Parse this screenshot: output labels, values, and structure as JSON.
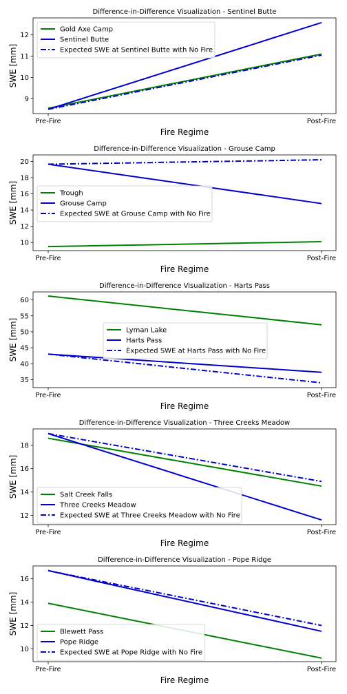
{
  "chart_data": [
    {
      "type": "line",
      "title": "Difference-in-Difference Visualization - Sentinel Butte",
      "xlabel": "Fire Regime",
      "ylabel": "SWE [mm]",
      "categories": [
        "Pre-Fire",
        "Post-Fire"
      ],
      "ylim": [
        8.3,
        12.8
      ],
      "yticks": [
        9,
        10,
        11,
        12
      ],
      "legend_loc": "upper-left",
      "series": [
        {
          "name": "Gold Axe Camp",
          "values": [
            8.55,
            11.1
          ],
          "color": "#008000",
          "style": "solid"
        },
        {
          "name": "Sentinel Butte",
          "values": [
            8.5,
            12.58
          ],
          "color": "#0000cd",
          "style": "solid"
        },
        {
          "name": "Expected SWE at Sentinel Butte with No Fire",
          "values": [
            8.5,
            11.05
          ],
          "color": "#0000cd",
          "style": "dashdot"
        }
      ]
    },
    {
      "type": "line",
      "title": "Difference-in-Difference Visualization - Grouse Camp",
      "xlabel": "Fire Regime",
      "ylabel": "SWE [mm]",
      "categories": [
        "Pre-Fire",
        "Post-Fire"
      ],
      "ylim": [
        9.0,
        20.8
      ],
      "yticks": [
        10,
        12,
        14,
        16,
        18,
        20
      ],
      "legend_loc": "center-left",
      "series": [
        {
          "name": "Trough",
          "values": [
            9.5,
            10.1
          ],
          "color": "#008000",
          "style": "solid"
        },
        {
          "name": "Grouse Camp",
          "values": [
            19.65,
            14.8
          ],
          "color": "#0000cd",
          "style": "solid"
        },
        {
          "name": "Expected SWE at Grouse Camp with No Fire",
          "values": [
            19.65,
            20.2
          ],
          "color": "#0000cd",
          "style": "dashdot"
        }
      ]
    },
    {
      "type": "line",
      "title": "Difference-in-Difference Visualization - Harts Pass",
      "xlabel": "Fire Regime",
      "ylabel": "SWE [mm]",
      "categories": [
        "Pre-Fire",
        "Post-Fire"
      ],
      "ylim": [
        32.5,
        62.5
      ],
      "yticks": [
        35,
        40,
        45,
        50,
        55,
        60
      ],
      "legend_loc": "center",
      "series": [
        {
          "name": "Lyman Lake",
          "values": [
            61.2,
            52.2
          ],
          "color": "#008000",
          "style": "solid"
        },
        {
          "name": "Harts Pass",
          "values": [
            43.0,
            37.3
          ],
          "color": "#0000cd",
          "style": "solid"
        },
        {
          "name": "Expected SWE at Harts Pass with No Fire",
          "values": [
            43.0,
            34.0
          ],
          "color": "#0000cd",
          "style": "dashdot"
        }
      ]
    },
    {
      "type": "line",
      "title": "Difference-in-Difference Visualization - Three Creeks Meadow",
      "xlabel": "Fire Regime",
      "ylabel": "SWE [mm]",
      "categories": [
        "Pre-Fire",
        "Post-Fire"
      ],
      "ylim": [
        11.2,
        19.4
      ],
      "yticks": [
        12,
        14,
        16,
        18
      ],
      "legend_loc": "lower-left",
      "series": [
        {
          "name": "Salt Creek Falls",
          "values": [
            18.6,
            14.5
          ],
          "color": "#008000",
          "style": "solid"
        },
        {
          "name": "Three Creeks Meadow",
          "values": [
            19.0,
            11.6
          ],
          "color": "#0000cd",
          "style": "solid"
        },
        {
          "name": "Expected SWE at Three Creeks Meadow with No Fire",
          "values": [
            19.0,
            14.9
          ],
          "color": "#0000cd",
          "style": "dashdot"
        }
      ]
    },
    {
      "type": "line",
      "title": "Difference-in-Difference Visualization - Pope Ridge",
      "xlabel": "Fire Regime",
      "ylabel": "SWE [mm]",
      "categories": [
        "Pre-Fire",
        "Post-Fire"
      ],
      "ylim": [
        8.9,
        17.1
      ],
      "yticks": [
        10,
        12,
        14,
        16
      ],
      "legend_loc": "lower-left",
      "series": [
        {
          "name": "Blewett Pass",
          "values": [
            13.9,
            9.2
          ],
          "color": "#008000",
          "style": "solid"
        },
        {
          "name": "Pope Ridge",
          "values": [
            16.7,
            11.5
          ],
          "color": "#0000cd",
          "style": "solid"
        },
        {
          "name": "Expected SWE at Pope Ridge with No Fire",
          "values": [
            16.7,
            12.0
          ],
          "color": "#0000cd",
          "style": "dashdot"
        }
      ]
    }
  ]
}
